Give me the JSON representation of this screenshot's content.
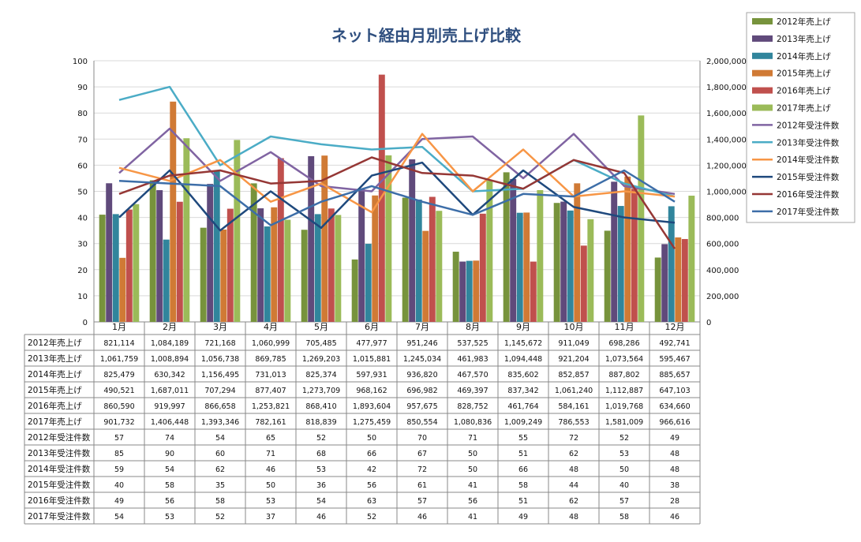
{
  "chart_data": {
    "type": "bar",
    "title": "ネット経由月別売上げ比較",
    "categories": [
      "1月",
      "2月",
      "3月",
      "4月",
      "5月",
      "6月",
      "7月",
      "8月",
      "9月",
      "10月",
      "11月",
      "12月"
    ],
    "bar_axis": {
      "ylim": [
        0,
        2000000
      ],
      "ticks": [
        "0",
        "200,000",
        "400,000",
        "600,000",
        "800,000",
        "1,000,000",
        "1,200,000",
        "1,400,000",
        "1,600,000",
        "1,800,000",
        "2,000,000"
      ]
    },
    "line_axis": {
      "ylim": [
        0,
        100
      ],
      "ticks": [
        "0",
        "10",
        "20",
        "30",
        "40",
        "50",
        "60",
        "70",
        "80",
        "90",
        "100"
      ]
    },
    "bar_series": [
      {
        "name": "2012年売上げ",
        "color": "#77933c",
        "values": [
          821114,
          1084189,
          721168,
          1060999,
          705485,
          477977,
          951246,
          537525,
          1145672,
          911049,
          698286,
          492741
        ],
        "labels": [
          "821,114",
          "1,084,189",
          "721,168",
          "1,060,999",
          "705,485",
          "477,977",
          "951,246",
          "537,525",
          "1,145,672",
          "911,049",
          "698,286",
          "492,741"
        ]
      },
      {
        "name": "2013年売上げ",
        "color": "#604a7b",
        "values": [
          1061759,
          1008894,
          1056738,
          869785,
          1269203,
          1015881,
          1245034,
          461983,
          1094448,
          921204,
          1073564,
          595467
        ],
        "labels": [
          "1,061,759",
          "1,008,894",
          "1,056,738",
          "869,785",
          "1,269,203",
          "1,015,881",
          "1,245,034",
          "461,983",
          "1,094,448",
          "921,204",
          "1,073,564",
          "595,467"
        ]
      },
      {
        "name": "2014年売上げ",
        "color": "#31859c",
        "values": [
          825479,
          630342,
          1156495,
          731013,
          825374,
          597931,
          936820,
          467570,
          835602,
          852857,
          887802,
          885657
        ],
        "labels": [
          "825,479",
          "630,342",
          "1,156,495",
          "731,013",
          "825,374",
          "597,931",
          "936,820",
          "467,570",
          "835,602",
          "852,857",
          "887,802",
          "885,657"
        ]
      },
      {
        "name": "2015年売上げ",
        "color": "#d07a35",
        "values": [
          490521,
          1687011,
          707294,
          877407,
          1273709,
          968162,
          696982,
          469397,
          837342,
          1061240,
          1112887,
          647103
        ],
        "labels": [
          "490,521",
          "1,687,011",
          "707,294",
          "877,407",
          "1,273,709",
          "968,162",
          "696,982",
          "469,397",
          "837,342",
          "1,061,240",
          "1,112,887",
          "647,103"
        ]
      },
      {
        "name": "2016年売上げ",
        "color": "#c0504d",
        "values": [
          860590,
          919997,
          866658,
          1253821,
          868410,
          1893604,
          957675,
          828752,
          461764,
          584161,
          1019768,
          634660
        ],
        "labels": [
          "860,590",
          "919,997",
          "866,658",
          "1,253,821",
          "868,410",
          "1,893,604",
          "957,675",
          "828,752",
          "461,764",
          "584,161",
          "1,019,768",
          "634,660"
        ]
      },
      {
        "name": "2017年売上げ",
        "color": "#9bbb59",
        "values": [
          901732,
          1406448,
          1393346,
          782161,
          818839,
          1275459,
          850554,
          1080836,
          1009249,
          786553,
          1581009,
          966616
        ],
        "labels": [
          "901,732",
          "1,406,448",
          "1,393,346",
          "782,161",
          "818,839",
          "1,275,459",
          "850,554",
          "1,080,836",
          "1,009,249",
          "786,553",
          "1,581,009",
          "966,616"
        ]
      }
    ],
    "line_series": [
      {
        "name": "2012年受注件数",
        "color": "#8064a2",
        "values": [
          57,
          74,
          54,
          65,
          52,
          50,
          70,
          71,
          55,
          72,
          52,
          49
        ]
      },
      {
        "name": "2013年受注件数",
        "color": "#4bacc6",
        "values": [
          85,
          90,
          60,
          71,
          68,
          66,
          67,
          50,
          51,
          62,
          53,
          48
        ]
      },
      {
        "name": "2014年受注件数",
        "color": "#f79646",
        "values": [
          59,
          54,
          62,
          46,
          53,
          42,
          72,
          50,
          66,
          48,
          50,
          48
        ]
      },
      {
        "name": "2015年受注件数",
        "color": "#1f497d",
        "values": [
          40,
          58,
          35,
          50,
          36,
          56,
          61,
          41,
          58,
          44,
          40,
          38
        ]
      },
      {
        "name": "2016年受注件数",
        "color": "#953735",
        "values": [
          49,
          56,
          58,
          53,
          54,
          63,
          57,
          56,
          51,
          62,
          57,
          28
        ]
      },
      {
        "name": "2017年受注件数",
        "color": "#3d6ea8",
        "values": [
          54,
          53,
          52,
          37,
          46,
          52,
          46,
          41,
          49,
          48,
          58,
          46
        ]
      }
    ]
  }
}
